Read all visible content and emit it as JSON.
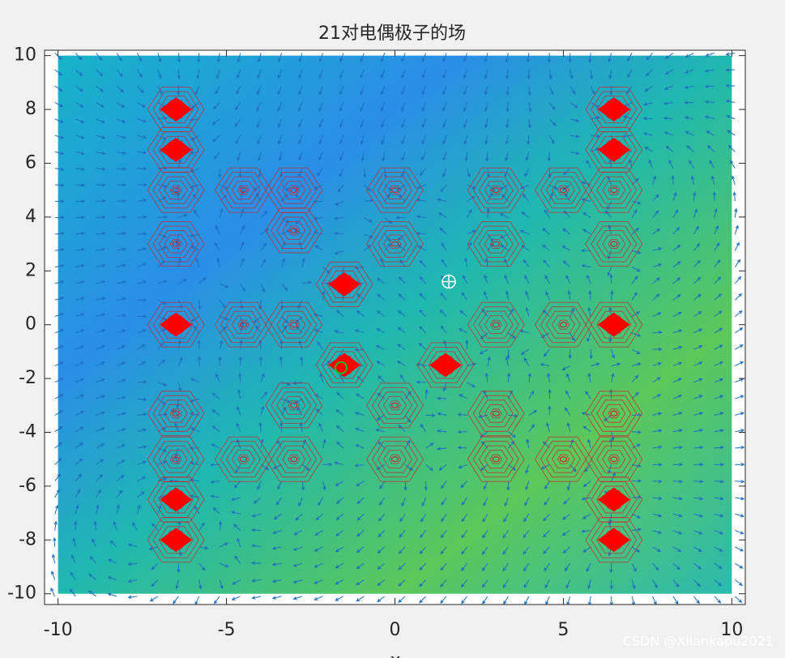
{
  "chart_data": {
    "type": "scatter",
    "title": "21对电偶极子的场",
    "xlabel": "x",
    "xlim": [
      -10.4,
      10.4
    ],
    "ylim": [
      -10.4,
      10.2
    ],
    "xticks": [
      -10,
      -5,
      0,
      5,
      10
    ],
    "yticks": [
      -10,
      -8,
      -6,
      -4,
      -2,
      0,
      2,
      4,
      6,
      8,
      10
    ],
    "series": [
      {
        "color": "#ff0000",
        "marker": "diamond",
        "x": [
          -6.5,
          -6.5,
          -6.5,
          -1.5,
          -1.5,
          1.5,
          6.5,
          6.5,
          6.5,
          6.5,
          6.5,
          -6.5,
          -6.5
        ],
        "y": [
          8,
          6.5,
          0,
          1.5,
          -1.5,
          -1.5,
          8,
          6.5,
          0,
          -6.5,
          -8,
          -6.5,
          -8
        ]
      },
      {
        "color": "#c8282d",
        "marker": "contour",
        "x": [
          -6.5,
          -6.5,
          -4.5,
          -3,
          -3,
          0,
          0,
          -4.5,
          -3,
          3,
          5,
          6.5,
          6.5,
          3,
          3,
          5,
          0,
          0,
          3,
          3,
          5,
          6.5,
          6.5,
          -6.5,
          -6.5,
          -4.5,
          -3,
          -3
        ],
        "y": [
          5,
          3,
          5,
          5,
          3.5,
          5,
          3,
          0,
          0,
          5,
          5,
          5,
          3,
          3,
          0,
          0,
          -3,
          -5,
          -3.3,
          -5,
          -5,
          -3.3,
          -5,
          -3.3,
          -5,
          -5,
          -3,
          -5
        ]
      },
      {
        "color": "#ffffff",
        "marker": "circle-plus",
        "x": [
          1.6
        ],
        "y": [
          1.6
        ]
      },
      {
        "color": "#22bb22",
        "marker": "circle",
        "x": [
          -1.6
        ],
        "y": [
          -1.6
        ]
      }
    ],
    "watermark": "CSDN @Xilankapu2021"
  }
}
